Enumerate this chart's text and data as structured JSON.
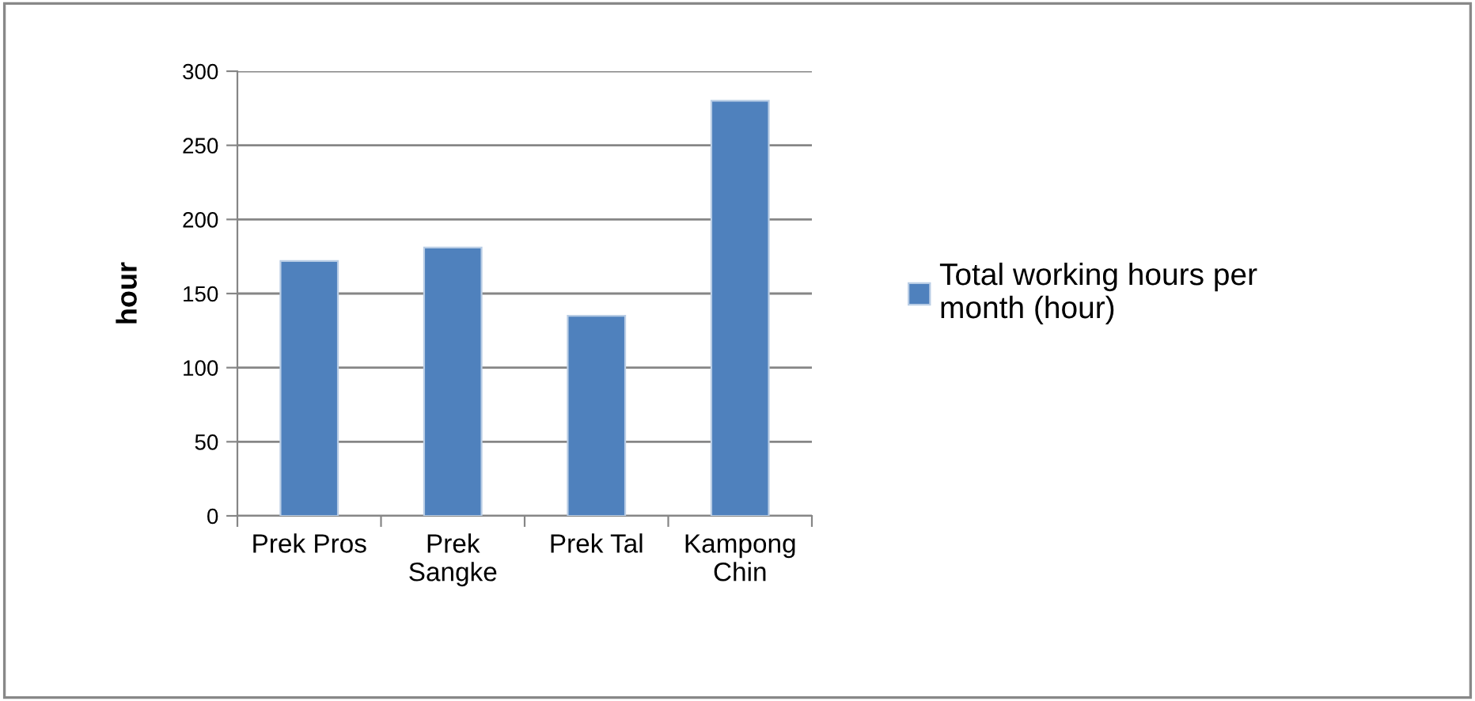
{
  "chart_data": {
    "type": "bar",
    "ylabel": "hour",
    "categories": [
      "Prek Pros",
      "Prek\nSangke",
      "Prek Tal",
      "Kampong\nChin"
    ],
    "series": [
      {
        "name": "Total working hours per\nmonth (hour)",
        "color": "#4f81bd",
        "values": [
          172,
          181,
          135,
          280
        ]
      }
    ],
    "ylim": [
      0,
      300
    ],
    "yticks": [
      0,
      50,
      100,
      150,
      200,
      250,
      300
    ],
    "grid": "y",
    "legend": "right"
  }
}
